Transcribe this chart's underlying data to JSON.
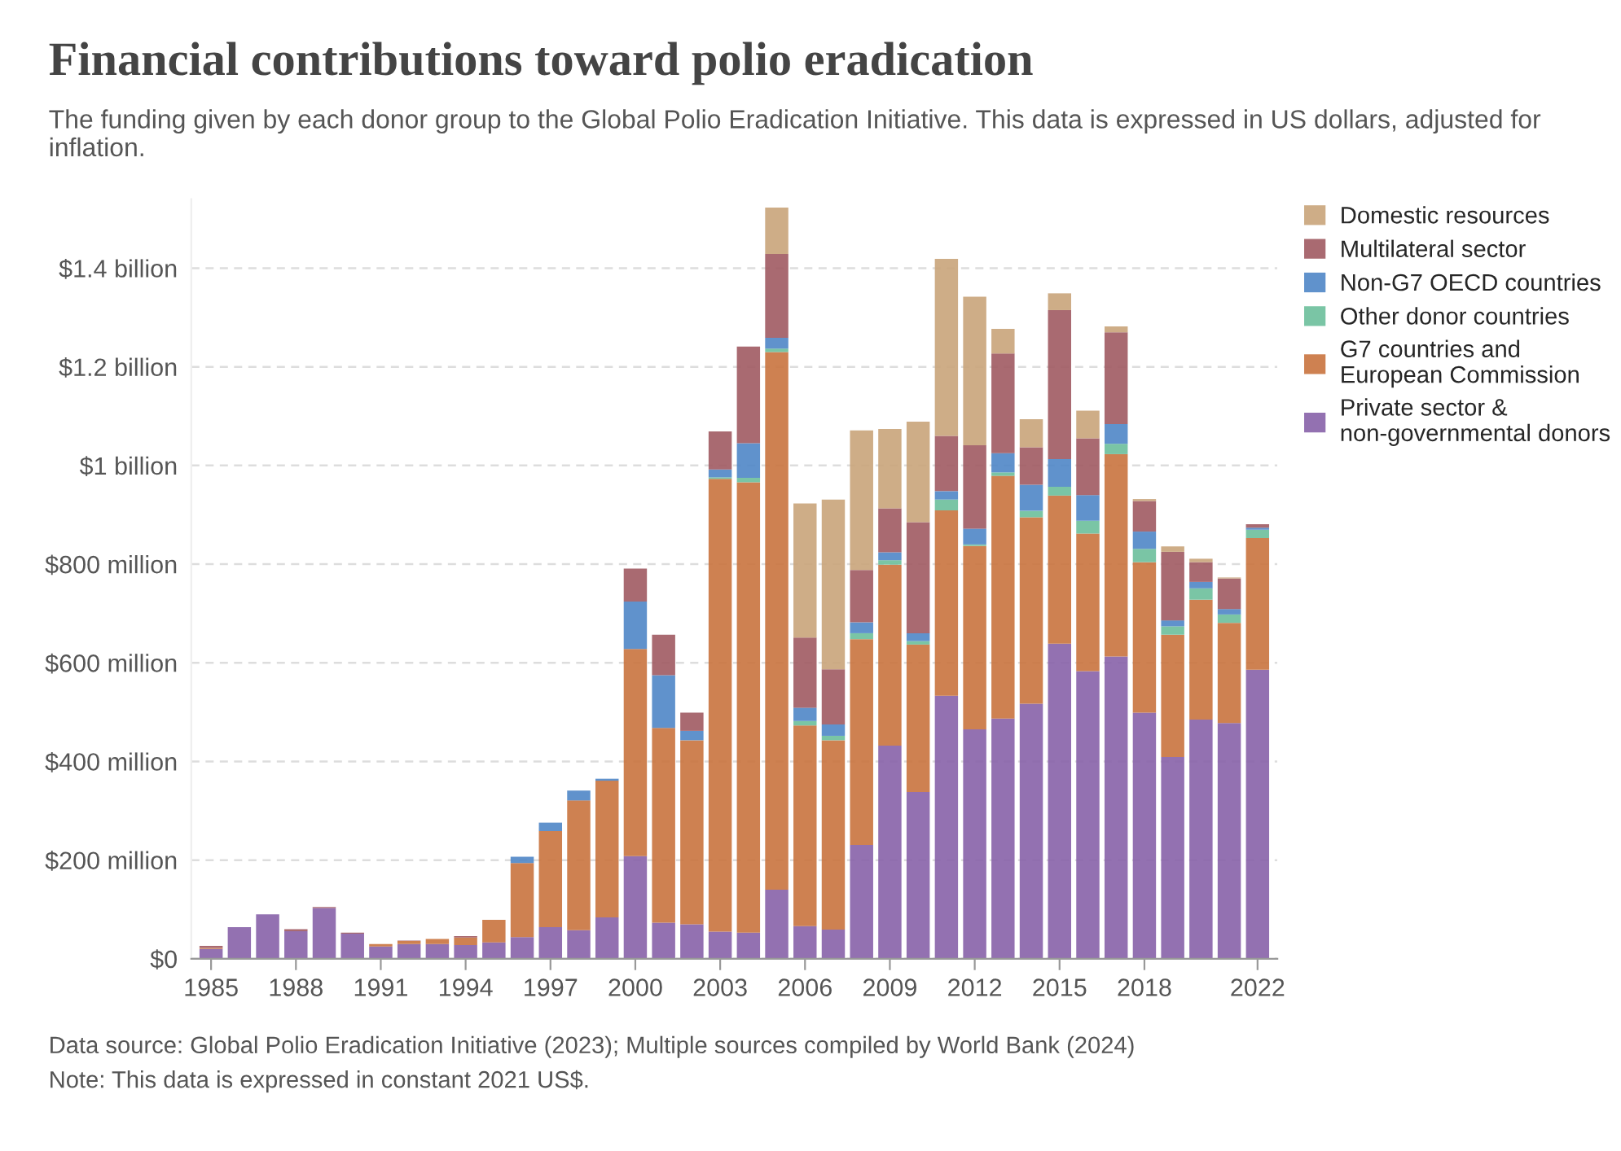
{
  "chart_data": {
    "type": "bar",
    "stacked": true,
    "title": "Financial contributions toward polio eradication",
    "subtitle": "The funding given by each donor group to the Global Polio Eradication Initiative. This data is expressed in US dollars, adjusted for inflation.",
    "categories": [
      "1985",
      null,
      null,
      "1988",
      null,
      null,
      "1991",
      null,
      null,
      "1994",
      null,
      null,
      "1997",
      null,
      null,
      "2000",
      null,
      null,
      "2003",
      null,
      null,
      "2006",
      null,
      null,
      "2009",
      null,
      null,
      "2012",
      null,
      null,
      "2015",
      null,
      null,
      "2018",
      null,
      null,
      null,
      "2022"
    ],
    "series": [
      {
        "name": "Private sector &\nnon-governmental donors",
        "color": "#8762a8",
        "values": [
          20000000.0,
          64000000.0,
          90000000.0,
          56000000.0,
          103000000.0,
          51000000.0,
          25000000.0,
          30000000.0,
          30000000.0,
          28000000.0,
          33000000.0,
          44000000.0,
          64000000.0,
          58000000.0,
          84000000.0,
          208000000.0,
          73000000.0,
          70000000.0,
          55000000.0,
          53000000.0,
          140000000.0,
          66000000.0,
          59000000.0,
          231000000.0,
          432000000.0,
          338000000.0,
          533000000.0,
          465000000.0,
          487000000.0,
          517000000.0,
          639000000.0,
          583000000.0,
          613000000.0,
          499000000.0,
          409000000.0,
          485000000.0,
          478000000.0,
          586000000.0
        ]
      },
      {
        "name": "G7 countries and\nEuropean Commission",
        "color": "#c9733e",
        "values": [
          2000000.0,
          0,
          0,
          0,
          0,
          0,
          5000000.0,
          6000000.0,
          10000000.0,
          15000000.0,
          46000000.0,
          150000000.0,
          195000000.0,
          263000000.0,
          277000000.0,
          420000000.0,
          395000000.0,
          373000000.0,
          918000000.0,
          913000000.0,
          1090000000.0,
          407000000.0,
          384000000.0,
          417000000.0,
          367000000.0,
          299000000.0,
          376000000.0,
          372000000.0,
          492000000.0,
          378000000.0,
          300000000.0,
          279000000.0,
          410000000.0,
          305000000.0,
          248000000.0,
          243000000.0,
          203000000.0,
          267000000.0
        ]
      },
      {
        "name": "Other donor countries",
        "color": "#6cbf9b",
        "values": [
          0,
          0,
          0,
          0,
          0,
          0,
          0,
          0,
          0,
          0,
          0,
          0,
          0,
          0,
          0,
          0,
          0,
          0,
          3000000.0,
          9000000.0,
          7000000.0,
          9000000.0,
          9000000.0,
          12000000.0,
          9000000.0,
          7000000.0,
          22000000.0,
          3000000.0,
          7000000.0,
          13000000.0,
          18000000.0,
          26000000.0,
          21000000.0,
          27000000.0,
          17000000.0,
          23000000.0,
          17000000.0,
          17000000.0
        ]
      },
      {
        "name": "Non-G7 OECD countries",
        "color": "#4f86c6",
        "values": [
          0,
          0,
          0,
          0,
          0,
          0,
          0,
          0,
          0,
          0,
          0,
          13000000.0,
          17000000.0,
          20000000.0,
          4000000.0,
          96000000.0,
          107000000.0,
          19000000.0,
          16000000.0,
          70000000.0,
          22000000.0,
          27000000.0,
          23000000.0,
          22000000.0,
          16000000.0,
          16000000.0,
          17000000.0,
          32000000.0,
          39000000.0,
          53000000.0,
          56000000.0,
          52000000.0,
          40000000.0,
          35000000.0,
          12000000.0,
          13000000.0,
          11000000.0,
          4000000.0
        ]
      },
      {
        "name": "Multilateral sector",
        "color": "#a05a62",
        "values": [
          4000000.0,
          0,
          0,
          4000000.0,
          2000000.0,
          2000000.0,
          0,
          1000000.0,
          0,
          3000000.0,
          0,
          0,
          0,
          0,
          0,
          67000000.0,
          82000000.0,
          37000000.0,
          77000000.0,
          196000000.0,
          170000000.0,
          142000000.0,
          112000000.0,
          106000000.0,
          89000000.0,
          225000000.0,
          112000000.0,
          169000000.0,
          202000000.0,
          76000000.0,
          302000000.0,
          115000000.0,
          186000000.0,
          62000000.0,
          139000000.0,
          40000000.0,
          62000000.0,
          7000000.0
        ]
      },
      {
        "name": "Domestic resources",
        "color": "#c9a47a",
        "values": [
          0,
          0,
          0,
          0,
          0,
          0,
          0,
          0,
          0,
          0,
          0,
          0,
          0,
          0,
          0,
          0,
          0,
          0,
          0,
          0,
          94000000.0,
          272000000.0,
          344000000.0,
          283000000.0,
          161000000.0,
          204000000.0,
          359000000.0,
          301000000.0,
          50000000.0,
          57000000.0,
          34000000.0,
          56000000.0,
          12000000.0,
          4000000.0,
          11000000.0,
          7000000.0,
          2000000.0,
          0
        ]
      }
    ],
    "ylim": [
      0,
      1540000000.0
    ],
    "yticks": [
      {
        "value": 0,
        "label": "$0"
      },
      {
        "value": 200000000.0,
        "label": "$200 million"
      },
      {
        "value": 400000000.0,
        "label": "$400 million"
      },
      {
        "value": 600000000.0,
        "label": "$600 million"
      },
      {
        "value": 800000000.0,
        "label": "$800 million"
      },
      {
        "value": 1000000000.0,
        "label": "$1 billion"
      },
      {
        "value": 1200000000.0,
        "label": "$1.2 billion"
      },
      {
        "value": 1400000000.0,
        "label": "$1.4 billion"
      }
    ],
    "grid": "y",
    "legend": "right",
    "annotations": [
      "Data source: Global Polio Eradication Initiative (2023); Multiple sources compiled by World Bank (2024)",
      "Note: This data is expressed in constant 2021 US$."
    ]
  }
}
